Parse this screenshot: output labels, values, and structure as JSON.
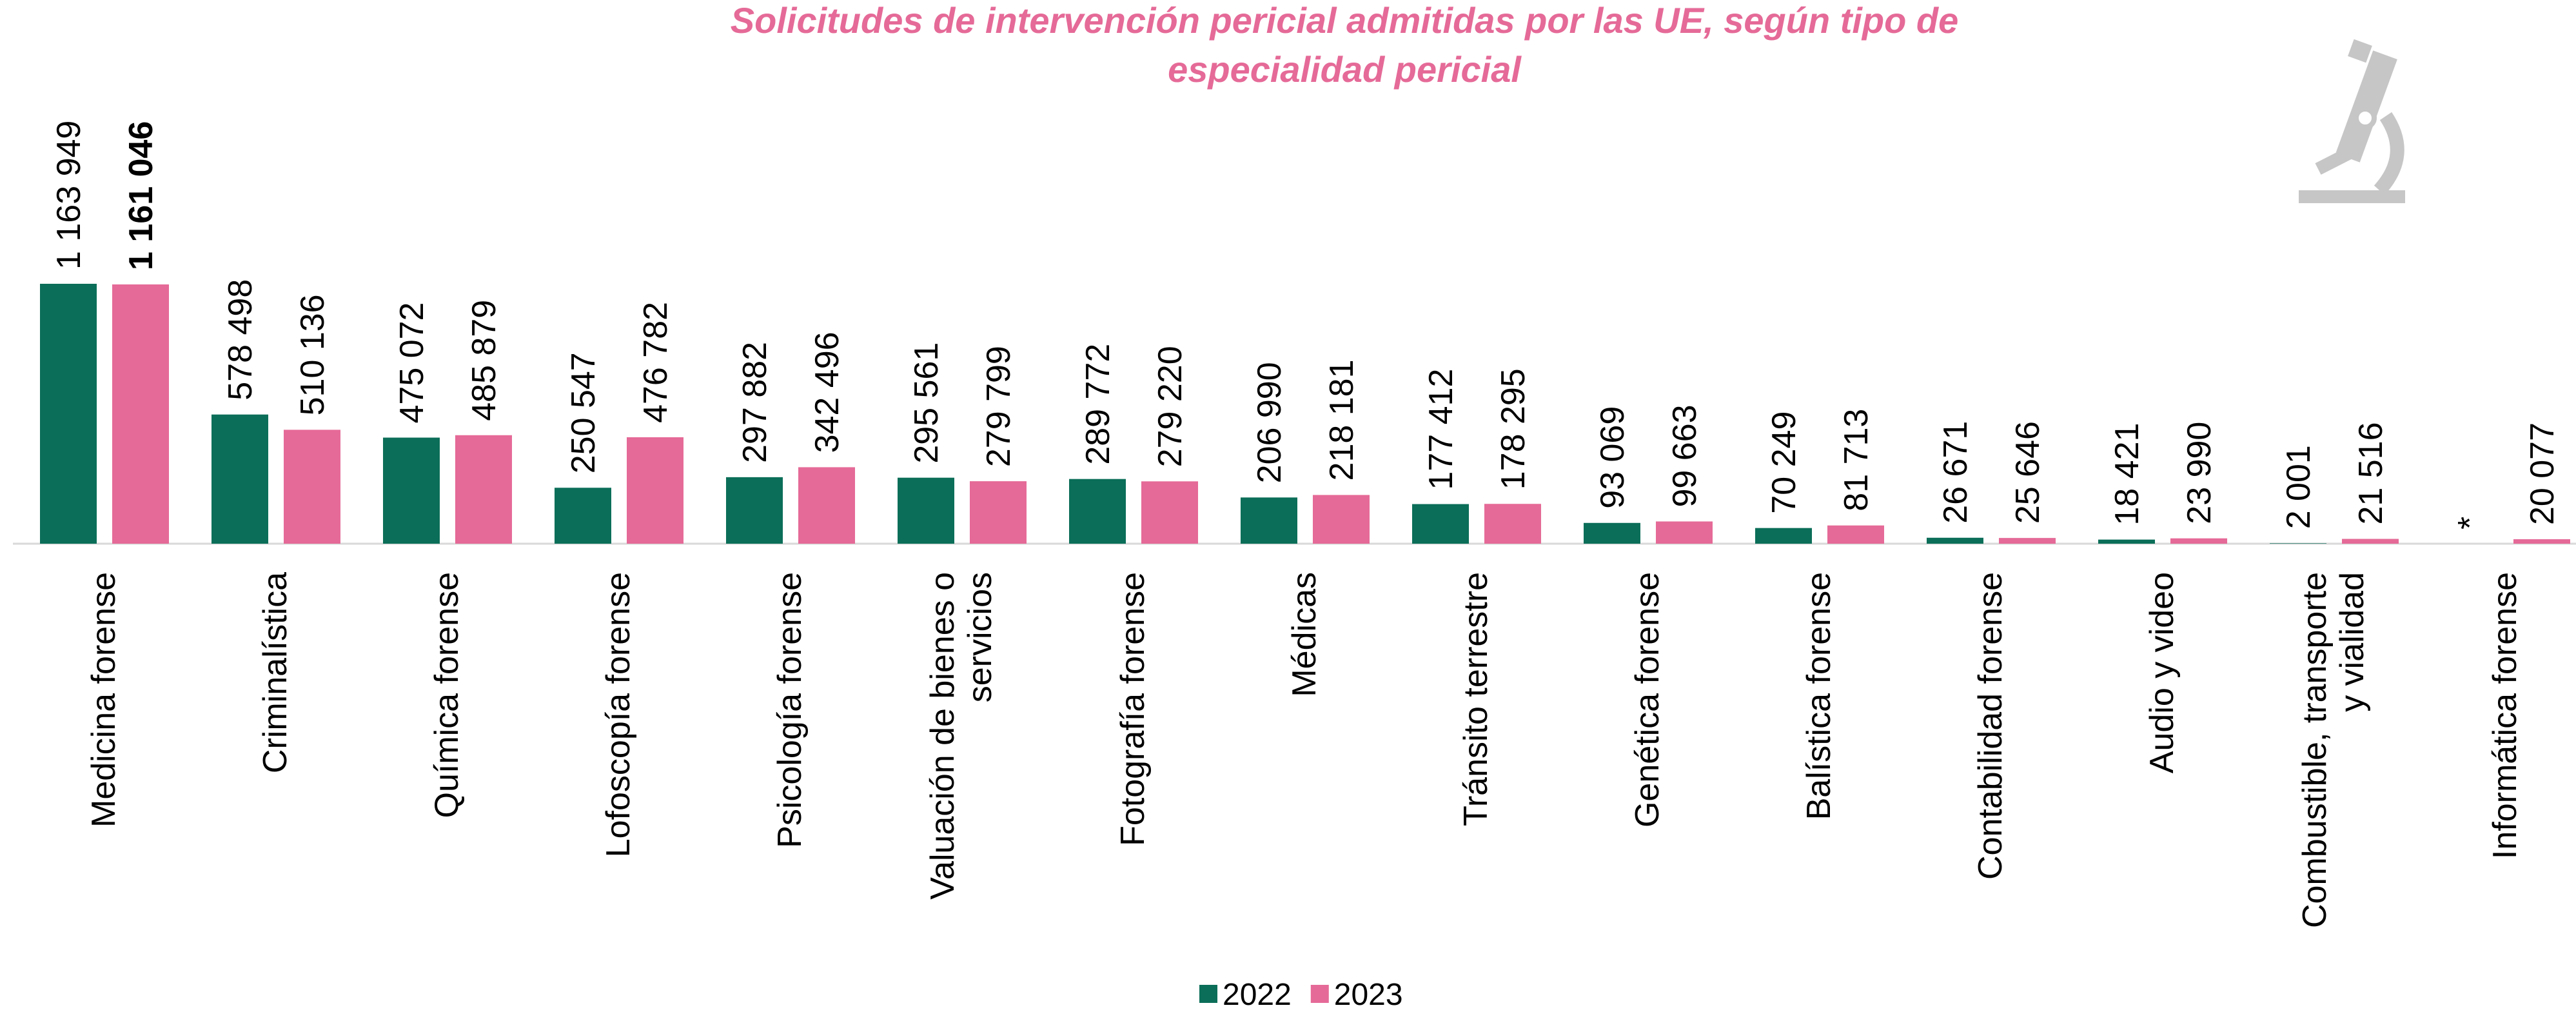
{
  "chart_data": {
    "type": "bar",
    "title": "Solicitudes de intervención pericial admitidas por las UE, según tipo de especialidad pericial",
    "categories": [
      "Medicina forense",
      "Criminalística",
      "Química forense",
      "Lofoscopía forense",
      "Psicología forense",
      "Valuación de bienes o servicios",
      "Fotografía forense",
      "Médicas",
      "Tránsito terrestre",
      "Genética forense",
      "Balística forense",
      "Contabilidad forense",
      "Audio y video",
      "Combustible, transporte y vialidad",
      "Informática forense"
    ],
    "series": [
      {
        "name": "2022",
        "color": "#0b6e58",
        "values": [
          1163949,
          578498,
          475072,
          250547,
          297882,
          295561,
          289772,
          206990,
          177412,
          93069,
          70249,
          26671,
          18421,
          2001,
          null
        ],
        "value_labels": [
          "1 163 949",
          "578 498",
          "475 072",
          "250 547",
          "297 882",
          "295 561",
          "289 772",
          "206 990",
          "177 412",
          "93 069",
          "70 249",
          "26 671",
          "18 421",
          "2 001",
          "*"
        ]
      },
      {
        "name": "2023",
        "color": "#e56a97",
        "values": [
          1161046,
          510136,
          485879,
          476782,
          342496,
          279799,
          279220,
          218181,
          178295,
          99663,
          81713,
          25646,
          23990,
          21516,
          20077
        ],
        "value_labels": [
          "1 161 046",
          "510 136",
          "485 879",
          "476 782",
          "342 496",
          "279 799",
          "279 220",
          "218 181",
          "178 295",
          "99 663",
          "81 713",
          "25 646",
          "23 990",
          "21 516",
          "20 077"
        ]
      }
    ],
    "legend": "bottom"
  }
}
